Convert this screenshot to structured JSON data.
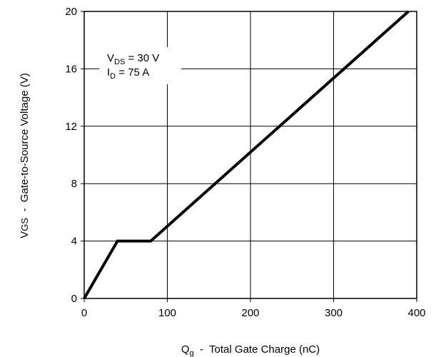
{
  "chart_data": {
    "type": "line",
    "xlabel_main": "Q",
    "xlabel_sub": "g",
    "xlabel_rest": "  -  Total Gate Charge (nC)",
    "ylabel_main": "V",
    "ylabel_sub": "GS",
    "ylabel_rest": "  -  Gate-to-Source Voltage (V)",
    "xlim": [
      0,
      400
    ],
    "ylim": [
      0,
      20
    ],
    "x_ticks": [
      0,
      100,
      200,
      300,
      400
    ],
    "x_tick_labels": [
      "0",
      "100",
      "200",
      "300",
      "400"
    ],
    "y_ticks": [
      0,
      4,
      8,
      12,
      16,
      20
    ],
    "y_tick_labels": [
      "0",
      "4",
      "8",
      "12",
      "16",
      "20"
    ],
    "grid": true,
    "series": [
      {
        "x": [
          0,
          40,
          80,
          390
        ],
        "y": [
          0,
          4,
          4,
          20
        ],
        "color": "#000000"
      }
    ],
    "annotations": [
      {
        "main": "V",
        "sub": "DS",
        "rest": " = 30 V"
      },
      {
        "main": "I",
        "sub": "D",
        "rest": " = 75 A"
      }
    ]
  }
}
